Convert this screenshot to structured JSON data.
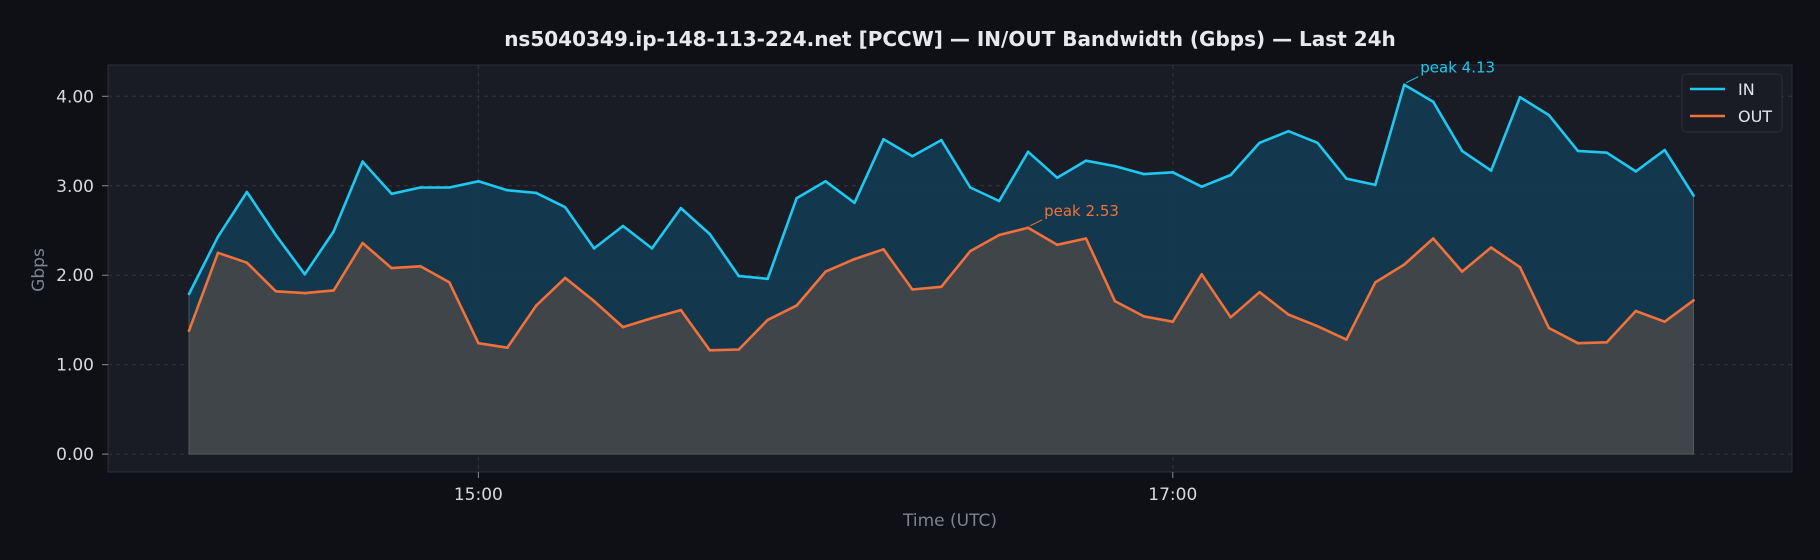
{
  "chart_data": {
    "type": "area",
    "title": "ns5040349.ip-148-113-224.net [PCCW] — IN/OUT Bandwidth (Gbps) — Last 24h",
    "xlabel": "Time (UTC)",
    "ylabel": "Gbps",
    "x_start": "14:10",
    "x_step_minutes": 5,
    "x_range": [
      "13:56",
      "18:47"
    ],
    "x_ticks": [
      {
        "time": "15:00",
        "label": "15:00"
      },
      {
        "time": "17:00",
        "label": "17:00"
      }
    ],
    "ylim": [
      -0.2,
      4.35
    ],
    "y_ticks": [
      {
        "value": 0,
        "label": "0.00"
      },
      {
        "value": 1,
        "label": "1.00"
      },
      {
        "value": 2,
        "label": "2.00"
      },
      {
        "value": 3,
        "label": "3.00"
      },
      {
        "value": 4,
        "label": "4.00"
      }
    ],
    "grid": true,
    "legend_position": "top-right",
    "series": [
      {
        "name": "IN",
        "color": "#1ec8f0",
        "fill_color": "#123b50",
        "values": [
          1.79,
          2.43,
          2.93,
          2.45,
          2.01,
          2.49,
          3.27,
          2.91,
          2.98,
          2.98,
          3.05,
          2.95,
          2.92,
          2.76,
          2.3,
          2.55,
          2.3,
          2.75,
          2.46,
          1.99,
          1.96,
          2.86,
          3.05,
          2.81,
          3.52,
          3.33,
          3.51,
          2.98,
          2.83,
          3.38,
          3.09,
          3.28,
          3.22,
          3.13,
          3.15,
          2.99,
          3.12,
          3.48,
          3.61,
          3.48,
          3.08,
          3.01,
          4.13,
          3.94,
          3.39,
          3.17,
          3.99,
          3.79,
          3.39,
          3.37,
          3.16,
          3.4,
          2.89
        ]
      },
      {
        "name": "OUT",
        "color": "#f2703a",
        "fill_color": "#44464a",
        "values": [
          1.38,
          2.25,
          2.14,
          1.82,
          1.8,
          1.83,
          2.36,
          2.08,
          2.1,
          1.92,
          1.24,
          1.19,
          1.66,
          1.97,
          1.71,
          1.42,
          1.52,
          1.61,
          1.16,
          1.17,
          1.5,
          1.66,
          2.04,
          2.18,
          2.29,
          1.84,
          1.87,
          2.27,
          2.45,
          2.53,
          2.34,
          2.41,
          1.71,
          1.54,
          1.48,
          2.01,
          1.53,
          1.81,
          1.56,
          1.43,
          1.28,
          1.92,
          2.12,
          2.41,
          2.04,
          2.31,
          2.09,
          1.41,
          1.24,
          1.25,
          1.6,
          1.48,
          1.72
        ]
      }
    ],
    "annotations": [
      {
        "series": "IN",
        "index": 42,
        "text": "peak 4.13"
      },
      {
        "series": "OUT",
        "index": 29,
        "text": "peak 2.53"
      }
    ]
  }
}
